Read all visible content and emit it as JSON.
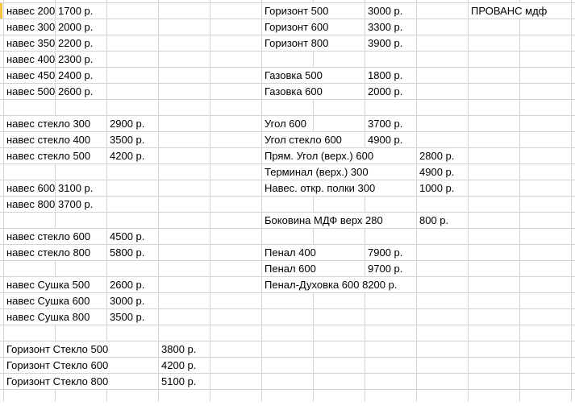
{
  "grid_color": "#d4d4d4",
  "selection_color": "#f5c542",
  "cells": [
    {
      "r": 0,
      "c": 0,
      "v": "навес 200"
    },
    {
      "r": 0,
      "c": 1,
      "v": "1700 р."
    },
    {
      "r": 0,
      "c": 5,
      "v": "Горизонт  500"
    },
    {
      "r": 0,
      "c": 7,
      "v": "3000 р."
    },
    {
      "r": 0,
      "c": 9,
      "v": "ПРОВАНС мдф"
    },
    {
      "r": 1,
      "c": 0,
      "v": "навес 300"
    },
    {
      "r": 1,
      "c": 1,
      "v": "2000 р."
    },
    {
      "r": 1,
      "c": 5,
      "v": "Горизонт  600"
    },
    {
      "r": 1,
      "c": 7,
      "v": "3300 р."
    },
    {
      "r": 2,
      "c": 0,
      "v": "навес 350"
    },
    {
      "r": 2,
      "c": 1,
      "v": "2200 р."
    },
    {
      "r": 2,
      "c": 5,
      "v": "Горизонт  800"
    },
    {
      "r": 2,
      "c": 7,
      "v": "3900 р."
    },
    {
      "r": 3,
      "c": 0,
      "v": "навес 400"
    },
    {
      "r": 3,
      "c": 1,
      "v": "2300 р."
    },
    {
      "r": 4,
      "c": 0,
      "v": "навес 450"
    },
    {
      "r": 4,
      "c": 1,
      "v": "2400 р."
    },
    {
      "r": 4,
      "c": 5,
      "v": "Газовка 500"
    },
    {
      "r": 4,
      "c": 7,
      "v": "1800 р."
    },
    {
      "r": 5,
      "c": 0,
      "v": "навес 500"
    },
    {
      "r": 5,
      "c": 1,
      "v": "2600 р."
    },
    {
      "r": 5,
      "c": 5,
      "v": "Газовка 600"
    },
    {
      "r": 5,
      "c": 7,
      "v": "2000 р."
    },
    {
      "r": 7,
      "c": 0,
      "v": "навес стекло 300"
    },
    {
      "r": 7,
      "c": 2,
      "v": "2900 р."
    },
    {
      "r": 7,
      "c": 5,
      "v": "Угол 600"
    },
    {
      "r": 7,
      "c": 7,
      "v": "3700 р."
    },
    {
      "r": 8,
      "c": 0,
      "v": "навес стекло 400"
    },
    {
      "r": 8,
      "c": 2,
      "v": "3500 р."
    },
    {
      "r": 8,
      "c": 5,
      "v": "Угол стекло 600"
    },
    {
      "r": 8,
      "c": 7,
      "v": "4900 р."
    },
    {
      "r": 9,
      "c": 0,
      "v": "навес стекло 500"
    },
    {
      "r": 9,
      "c": 2,
      "v": "4200 р."
    },
    {
      "r": 9,
      "c": 5,
      "v": "Прям. Угол (верх.) 600"
    },
    {
      "r": 9,
      "c": 8,
      "v": "2800 р."
    },
    {
      "r": 10,
      "c": 5,
      "v": "Терминал (верх.) 300"
    },
    {
      "r": 10,
      "c": 8,
      "v": "4900 р."
    },
    {
      "r": 11,
      "c": 0,
      "v": "навес 600"
    },
    {
      "r": 11,
      "c": 1,
      "v": "3100 р."
    },
    {
      "r": 11,
      "c": 5,
      "v": "Навес. откр. полки 300"
    },
    {
      "r": 11,
      "c": 8,
      "v": "1000 р."
    },
    {
      "r": 12,
      "c": 0,
      "v": "навес 800"
    },
    {
      "r": 12,
      "c": 1,
      "v": "3700 р."
    },
    {
      "r": 13,
      "c": 5,
      "v": "Боковина МДФ верх 280"
    },
    {
      "r": 13,
      "c": 8,
      "v": "800 р."
    },
    {
      "r": 14,
      "c": 0,
      "v": "навес стекло 600"
    },
    {
      "r": 14,
      "c": 2,
      "v": "4500 р."
    },
    {
      "r": 15,
      "c": 0,
      "v": "навес стекло 800"
    },
    {
      "r": 15,
      "c": 2,
      "v": "5800 р."
    },
    {
      "r": 15,
      "c": 5,
      "v": "Пенал 400"
    },
    {
      "r": 15,
      "c": 7,
      "v": "7900 р."
    },
    {
      "r": 16,
      "c": 5,
      "v": "Пенал 600"
    },
    {
      "r": 16,
      "c": 7,
      "v": "9700 р."
    },
    {
      "r": 17,
      "c": 0,
      "v": "навес Сушка 500"
    },
    {
      "r": 17,
      "c": 2,
      "v": "2600 р."
    },
    {
      "r": 17,
      "c": 5,
      "v": "Пенал-Духовка 600   8200 р."
    },
    {
      "r": 18,
      "c": 0,
      "v": "навес Сушка 600"
    },
    {
      "r": 18,
      "c": 2,
      "v": "3000 р."
    },
    {
      "r": 19,
      "c": 0,
      "v": "навес Сушка 800"
    },
    {
      "r": 19,
      "c": 2,
      "v": "3500 р."
    },
    {
      "r": 21,
      "c": 0,
      "v": "Горизонт Стекло  500"
    },
    {
      "r": 21,
      "c": 3,
      "v": "3800 р."
    },
    {
      "r": 22,
      "c": 0,
      "v": "Горизонт Стекло  600"
    },
    {
      "r": 22,
      "c": 3,
      "v": "4200 р."
    },
    {
      "r": 23,
      "c": 0,
      "v": "Горизонт Стекло  800"
    },
    {
      "r": 23,
      "c": 3,
      "v": "5100 р."
    }
  ]
}
